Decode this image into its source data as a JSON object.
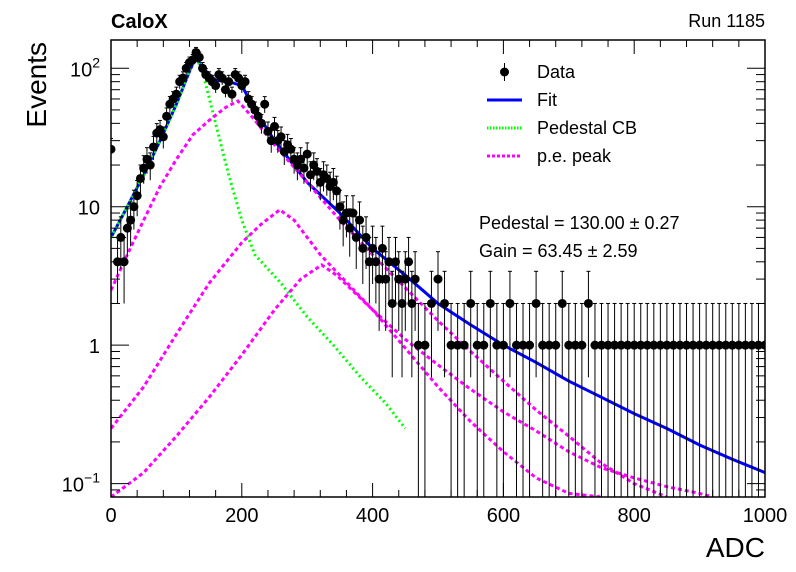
{
  "header": {
    "experiment": "CaloX",
    "run": "Run 1185"
  },
  "chart_data": {
    "type": "scatter",
    "title": "",
    "xlabel": "ADC",
    "ylabel": "Events",
    "xlim": [
      0,
      1000
    ],
    "ylim": [
      0.08,
      160
    ],
    "yscale": "log",
    "x_ticks": [
      {
        "value": 0,
        "label": "0"
      },
      {
        "value": 200,
        "label": "200"
      },
      {
        "value": 400,
        "label": "400"
      },
      {
        "value": 600,
        "label": "600"
      },
      {
        "value": 800,
        "label": "800"
      },
      {
        "value": 1000,
        "label": "1000"
      }
    ],
    "y_ticks": [
      {
        "value": 0.1,
        "base": "10",
        "exp": "−1"
      },
      {
        "value": 1,
        "base": "1",
        "exp": ""
      },
      {
        "value": 10,
        "base": "10",
        "exp": ""
      },
      {
        "value": 100,
        "base": "10",
        "exp": "2"
      }
    ],
    "legend": {
      "placement": "top-right",
      "entries": [
        {
          "label": "Data",
          "style": "marker",
          "color": "#000000"
        },
        {
          "label": "Fit",
          "style": "solid",
          "color": "#0000ff"
        },
        {
          "label": "Pedestal CB",
          "style": "dotted",
          "color": "#00ff00"
        },
        {
          "label": "p.e. peak",
          "style": "dashed",
          "color": "#ff00ff"
        }
      ]
    },
    "fit_results": {
      "pedestal": "Pedestal = 130.00 ± 0.27",
      "gain": "Gain = 63.45 ± 2.59"
    },
    "series": [
      {
        "name": "Data",
        "kind": "points",
        "color": "#000000",
        "x": [
          0,
          10,
          15,
          20,
          25,
          30,
          35,
          40,
          45,
          50,
          55,
          60,
          65,
          70,
          75,
          80,
          85,
          90,
          95,
          100,
          105,
          110,
          115,
          120,
          125,
          130,
          135,
          140,
          145,
          150,
          155,
          160,
          165,
          170,
          175,
          180,
          185,
          190,
          195,
          200,
          205,
          210,
          215,
          220,
          225,
          230,
          235,
          240,
          245,
          250,
          255,
          260,
          265,
          270,
          275,
          280,
          285,
          290,
          295,
          300,
          305,
          310,
          315,
          320,
          325,
          330,
          335,
          340,
          345,
          350,
          355,
          360,
          365,
          370,
          375,
          380,
          385,
          390,
          395,
          400,
          405,
          410,
          415,
          420,
          425,
          430,
          435,
          440,
          445,
          450,
          455,
          460,
          465,
          470,
          480,
          490,
          500,
          510,
          520,
          530,
          540,
          550,
          560,
          570,
          580,
          590,
          600,
          610,
          620,
          630,
          640,
          650,
          660,
          670,
          680,
          690,
          700,
          710,
          720,
          730,
          740,
          750,
          760,
          770,
          780,
          790,
          800,
          810,
          820,
          830,
          840,
          850,
          860,
          870,
          880,
          890,
          900,
          910,
          920,
          930,
          940,
          950,
          960,
          970,
          980,
          990,
          1000
        ],
        "y": [
          26,
          4,
          6,
          4,
          7,
          8,
          10,
          12,
          16,
          19,
          22,
          20,
          27,
          34,
          36,
          32,
          45,
          55,
          60,
          65,
          80,
          85,
          100,
          110,
          115,
          130,
          120,
          100,
          90,
          85,
          80,
          75,
          90,
          85,
          70,
          80,
          65,
          90,
          85,
          75,
          80,
          60,
          55,
          50,
          45,
          40,
          55,
          35,
          30,
          38,
          30,
          32,
          25,
          28,
          26,
          22,
          20,
          22,
          19,
          24,
          17,
          20,
          18,
          15,
          17,
          16,
          14,
          15,
          13,
          10,
          8,
          9,
          7,
          9,
          6,
          8,
          5,
          6,
          4,
          5,
          4,
          3,
          5,
          3,
          4,
          2,
          4,
          3,
          2,
          3,
          4,
          2,
          3,
          1,
          1,
          2,
          3,
          2,
          1,
          1,
          1,
          2,
          1,
          1,
          2,
          1,
          1,
          2,
          1,
          1,
          1,
          2,
          1,
          1,
          1,
          2,
          1,
          1,
          1,
          2,
          1,
          1,
          1,
          1,
          1,
          1,
          1,
          1,
          1,
          1,
          1,
          1,
          1,
          1,
          1,
          1,
          1,
          1,
          1,
          1,
          1,
          1,
          1,
          1,
          1,
          1,
          1
        ]
      },
      {
        "name": "Fit",
        "kind": "line",
        "color": "#0000ff",
        "x": [
          0,
          25,
          50,
          75,
          100,
          120,
          130,
          140,
          160,
          180,
          200,
          220,
          250,
          300,
          350,
          400,
          450,
          500,
          550,
          600,
          650,
          700,
          750,
          800,
          850,
          900,
          950,
          1000
        ],
        "y": [
          6,
          10,
          17,
          30,
          55,
          95,
          120,
          100,
          82,
          80,
          75,
          50,
          30,
          15,
          9,
          5,
          3.2,
          2,
          1.4,
          1.0,
          0.75,
          0.55,
          0.42,
          0.32,
          0.25,
          0.19,
          0.15,
          0.12
        ]
      },
      {
        "name": "Pedestal CB",
        "kind": "line",
        "color": "#00ff00",
        "x": [
          0,
          25,
          50,
          75,
          100,
          120,
          130,
          140,
          160,
          180,
          200,
          220,
          260,
          300,
          340,
          380,
          420,
          450
        ],
        "y": [
          6,
          10,
          17,
          30,
          55,
          95,
          120,
          95,
          40,
          17,
          8,
          4.5,
          2.8,
          1.6,
          1.0,
          0.6,
          0.38,
          0.25
        ]
      },
      {
        "name": "p.e. peak 1",
        "kind": "line",
        "color": "#ff00ff",
        "x": [
          0,
          25,
          50,
          75,
          100,
          125,
          150,
          175,
          194,
          215,
          250,
          300,
          350,
          400,
          450,
          500,
          550,
          600,
          650,
          700,
          750,
          800,
          850
        ],
        "y": [
          2.5,
          4.5,
          8,
          14,
          22,
          33,
          42,
          52,
          58,
          45,
          28,
          15,
          8,
          4.5,
          2.6,
          1.5,
          0.9,
          0.55,
          0.34,
          0.22,
          0.14,
          0.1,
          0.08
        ]
      },
      {
        "name": "p.e. peak 2",
        "kind": "line",
        "color": "#ff00ff",
        "x": [
          0,
          50,
          100,
          150,
          200,
          230,
          258,
          280,
          320,
          400,
          450,
          500,
          550,
          600,
          650,
          700,
          750
        ],
        "y": [
          0.25,
          0.5,
          1.2,
          2.8,
          5.5,
          7.5,
          9.5,
          8,
          4.5,
          1.8,
          0.95,
          0.5,
          0.28,
          0.17,
          0.11,
          0.085,
          0.08
        ]
      },
      {
        "name": "p.e. peak 3",
        "kind": "line",
        "color": "#ff00ff",
        "x": [
          0,
          50,
          100,
          150,
          200,
          250,
          290,
          322,
          345,
          400,
          450,
          500,
          550,
          600,
          650,
          700,
          750,
          800,
          850,
          900,
          920
        ],
        "y": [
          0.08,
          0.12,
          0.22,
          0.42,
          0.85,
          1.8,
          3.0,
          3.8,
          3.2,
          1.8,
          1.1,
          0.72,
          0.48,
          0.33,
          0.24,
          0.17,
          0.13,
          0.11,
          0.095,
          0.085,
          0.08
        ]
      }
    ]
  }
}
